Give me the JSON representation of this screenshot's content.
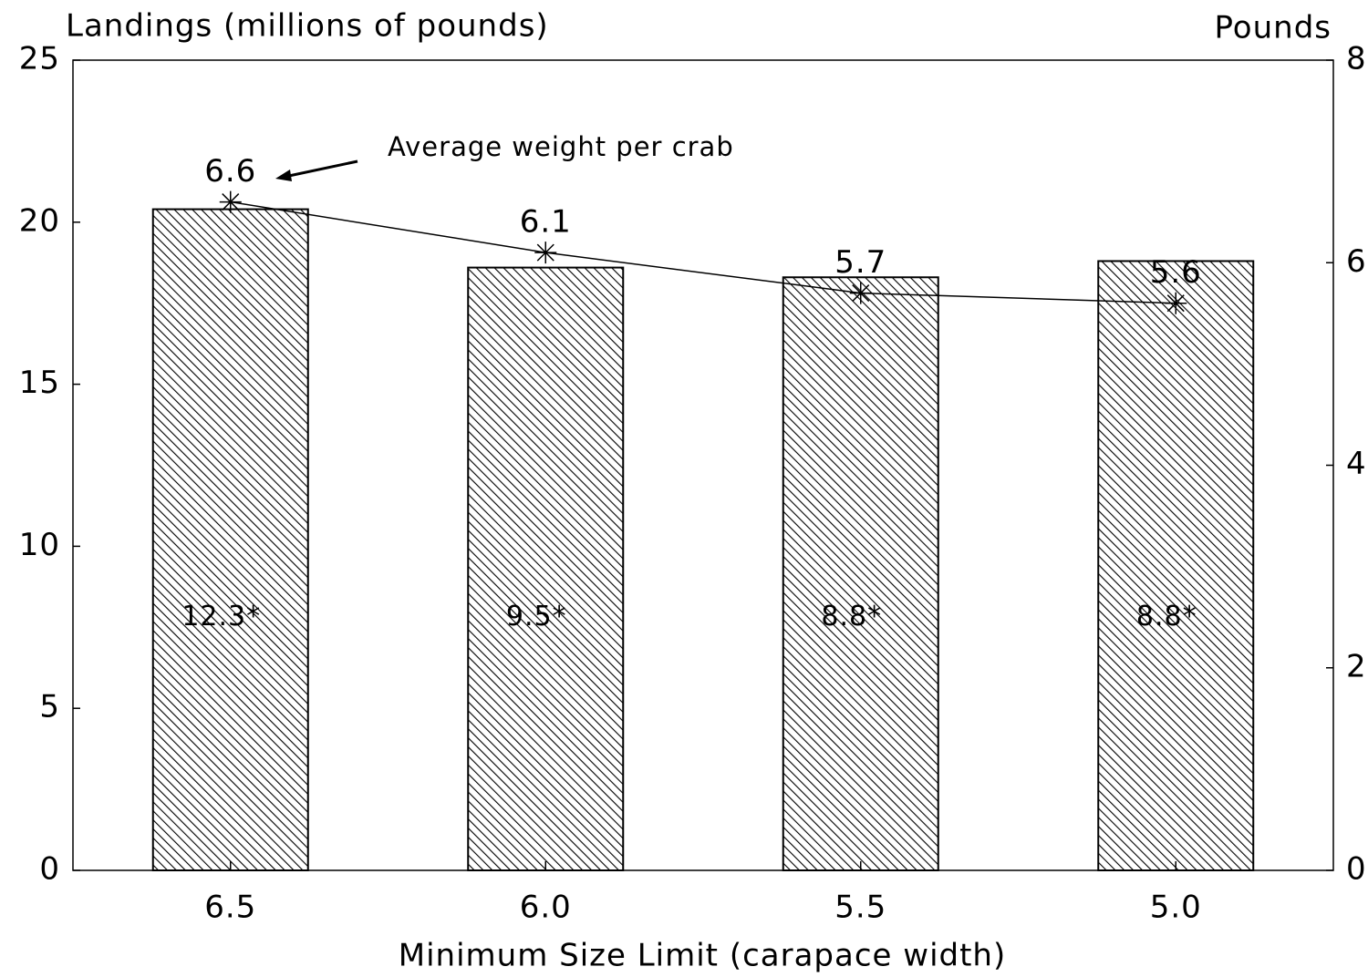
{
  "chart_data": {
    "type": "bar",
    "y_label": "Landings (millions of pounds)",
    "y2_label": "Pounds",
    "x_label": "Minimum Size Limit (carapace width)",
    "annotation": "Average weight per crab",
    "categories": [
      "6.5",
      "6.0",
      "5.5",
      "5.0"
    ],
    "series": [
      {
        "type": "bar",
        "color": "#000000",
        "values": [
          20.4,
          18.6,
          18.3,
          18.8
        ]
      },
      {
        "type": "line",
        "axis": "y2",
        "color": "#000000",
        "values": [
          6.6,
          6.1,
          5.7,
          5.6
        ]
      }
    ],
    "bar_notes": [
      "12.3*",
      "9.5*",
      "8.8*",
      "8.8*"
    ],
    "ylim": [
      0,
      25
    ],
    "yticks": [
      0,
      5,
      10,
      15,
      20,
      25
    ],
    "y2lim": [
      0,
      8
    ],
    "y2ticks": [
      0,
      2,
      4,
      6,
      8
    ],
    "grid": false
  }
}
